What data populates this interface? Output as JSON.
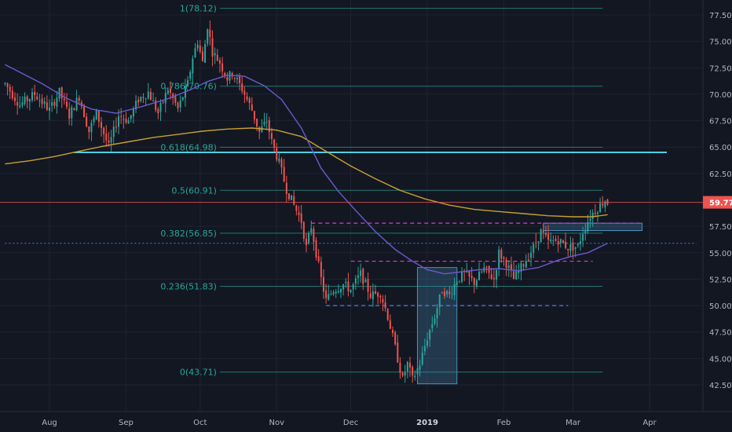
{
  "chart_data": {
    "type": "candlestick",
    "title": "",
    "xlabel": "",
    "ylabel": "",
    "ylim": [
      41.5,
      79.0
    ],
    "y_ticks": [
      "77.50",
      "75.00",
      "72.50",
      "70.00",
      "67.50",
      "65.00",
      "62.50",
      "57.50",
      "55.00",
      "52.50",
      "50.00",
      "47.50",
      "45.00",
      "42.50"
    ],
    "x_ticks": [
      {
        "label": "Aug",
        "t": 8
      },
      {
        "label": "Sep",
        "t": 39
      },
      {
        "label": "Oct",
        "t": 69
      },
      {
        "label": "Nov",
        "t": 100
      },
      {
        "label": "Dec",
        "t": 130
      },
      {
        "label": "2019",
        "t": 161,
        "bold": true
      },
      {
        "label": "Feb",
        "t": 192
      },
      {
        "label": "Mar",
        "t": 220
      },
      {
        "label": "Apr",
        "t": 251
      }
    ],
    "t_range": [
      -10,
      270
    ],
    "grid": true,
    "last_price": {
      "value": 59.77,
      "label": "59.77",
      "color": "#ef5350"
    },
    "fib_levels": [
      {
        "label": "1(78.12)",
        "value": 78.12
      },
      {
        "label": "0.786(70.76)",
        "value": 70.76
      },
      {
        "label": "0.618(64.98)",
        "value": 64.98
      },
      {
        "label": "0.5(60.91)",
        "value": 60.91
      },
      {
        "label": "0.382(56.85)",
        "value": 56.85
      },
      {
        "label": "0.236(51.83)",
        "value": 51.83
      },
      {
        "label": "0(43.71)",
        "value": 43.71
      }
    ],
    "fib_range": {
      "t_start": 77,
      "t_end": 232
    },
    "horizontal_lines": [
      {
        "value": 64.5,
        "t_start": 18,
        "t_end": 258,
        "color": "#4dd0e1",
        "style": "solid"
      },
      {
        "value": 55.9,
        "t_start": -10,
        "t_end": 270,
        "color": "#3f6fd8",
        "style": "dotted"
      },
      {
        "value": 57.8,
        "t_start": 114,
        "t_end": 248,
        "color": "#d040d0",
        "style": "dashed"
      },
      {
        "value": 54.2,
        "t_start": 130,
        "t_end": 228,
        "color": "#d040d0",
        "style": "dashed"
      },
      {
        "value": 50.0,
        "t_start": 120,
        "t_end": 218,
        "color": "#5b8def",
        "style": "dashed"
      }
    ],
    "rectangles": [
      {
        "t1": 157,
        "t2": 173,
        "v1": 42.6,
        "v2": 53.6,
        "color": "#4a90c0"
      },
      {
        "t1": 208,
        "t2": 248,
        "v1": 57.1,
        "v2": 57.8,
        "color": "#4a90c0"
      }
    ],
    "ma_fast": {
      "color": "#6a5acd",
      "points": [
        [
          -10,
          72.8
        ],
        [
          5,
          71.0
        ],
        [
          15,
          69.6
        ],
        [
          25,
          68.6
        ],
        [
          35,
          68.2
        ],
        [
          45,
          68.8
        ],
        [
          55,
          69.5
        ],
        [
          65,
          70.4
        ],
        [
          72,
          71.2
        ],
        [
          80,
          71.8
        ],
        [
          87,
          71.7
        ],
        [
          95,
          70.8
        ],
        [
          102,
          69.5
        ],
        [
          110,
          66.8
        ],
        [
          118,
          63.0
        ],
        [
          125,
          60.8
        ],
        [
          132,
          59.0
        ],
        [
          140,
          57.0
        ],
        [
          148,
          55.3
        ],
        [
          155,
          54.2
        ],
        [
          161,
          53.4
        ],
        [
          168,
          53.0
        ],
        [
          175,
          53.2
        ],
        [
          182,
          53.4
        ],
        [
          190,
          53.5
        ],
        [
          198,
          53.3
        ],
        [
          206,
          53.6
        ],
        [
          214,
          54.3
        ],
        [
          220,
          54.7
        ],
        [
          226,
          55.0
        ],
        [
          234,
          55.9
        ]
      ]
    },
    "ma_slow": {
      "color": "#c8a030",
      "points": [
        [
          -10,
          63.4
        ],
        [
          0,
          63.7
        ],
        [
          10,
          64.1
        ],
        [
          20,
          64.6
        ],
        [
          30,
          65.1
        ],
        [
          40,
          65.5
        ],
        [
          50,
          65.9
        ],
        [
          60,
          66.2
        ],
        [
          70,
          66.5
        ],
        [
          80,
          66.7
        ],
        [
          90,
          66.8
        ],
        [
          100,
          66.6
        ],
        [
          110,
          66.0
        ],
        [
          120,
          64.6
        ],
        [
          130,
          63.2
        ],
        [
          140,
          62.0
        ],
        [
          150,
          60.9
        ],
        [
          160,
          60.1
        ],
        [
          170,
          59.5
        ],
        [
          180,
          59.1
        ],
        [
          190,
          58.9
        ],
        [
          200,
          58.7
        ],
        [
          210,
          58.5
        ],
        [
          220,
          58.4
        ],
        [
          228,
          58.4
        ],
        [
          234,
          58.6
        ]
      ]
    },
    "anchors": [
      [
        -10,
        71.0
      ],
      [
        -4,
        69.0
      ],
      [
        2,
        70.0
      ],
      [
        8,
        68.5
      ],
      [
        12,
        70.2
      ],
      [
        16,
        68.0
      ],
      [
        20,
        69.8
      ],
      [
        24,
        66.5
      ],
      [
        27,
        68.2
      ],
      [
        32,
        65.0
      ],
      [
        36,
        68.0
      ],
      [
        40,
        67.5
      ],
      [
        44,
        69.5
      ],
      [
        48,
        70.2
      ],
      [
        52,
        68.2
      ],
      [
        56,
        70.5
      ],
      [
        60,
        68.6
      ],
      [
        64,
        71.0
      ],
      [
        66,
        73.5
      ],
      [
        68,
        75.0
      ],
      [
        70,
        73.0
      ],
      [
        72,
        76.5
      ],
      [
        74,
        74.0
      ],
      [
        77,
        73.0
      ],
      [
        80,
        71.5
      ],
      [
        82,
        72.0
      ],
      [
        86,
        70.5
      ],
      [
        90,
        68.5
      ],
      [
        93,
        66.4
      ],
      [
        96,
        67.5
      ],
      [
        98,
        65.5
      ],
      [
        101,
        63.5
      ],
      [
        104,
        61.0
      ],
      [
        107,
        59.5
      ],
      [
        110,
        58.0
      ],
      [
        112,
        55.5
      ],
      [
        114,
        57.5
      ],
      [
        118,
        52.5
      ],
      [
        120,
        50.5
      ],
      [
        123,
        51.5
      ],
      [
        127,
        52.0
      ],
      [
        130,
        51.5
      ],
      [
        134,
        53.0
      ],
      [
        138,
        51.0
      ],
      [
        142,
        51.2
      ],
      [
        145,
        49.0
      ],
      [
        148,
        46.0
      ],
      [
        151,
        43.0
      ],
      [
        153,
        44.5
      ],
      [
        155,
        43.0
      ],
      [
        158,
        44.5
      ],
      [
        161,
        47.0
      ],
      [
        164,
        49.0
      ],
      [
        167,
        51.5
      ],
      [
        170,
        51.0
      ],
      [
        173,
        52.5
      ],
      [
        176,
        53.0
      ],
      [
        180,
        52.2
      ],
      [
        184,
        53.5
      ],
      [
        188,
        52.5
      ],
      [
        190,
        55.0
      ],
      [
        193,
        54.0
      ],
      [
        196,
        52.5
      ],
      [
        200,
        54.0
      ],
      [
        204,
        55.5
      ],
      [
        207,
        57.0
      ],
      [
        210,
        56.0
      ],
      [
        214,
        56.2
      ],
      [
        218,
        55.5
      ],
      [
        222,
        55.6
      ],
      [
        224,
        57.0
      ],
      [
        227,
        58.5
      ],
      [
        229,
        59.0
      ],
      [
        231,
        59.5
      ],
      [
        233,
        60.0
      ],
      [
        234,
        59.77
      ]
    ]
  }
}
